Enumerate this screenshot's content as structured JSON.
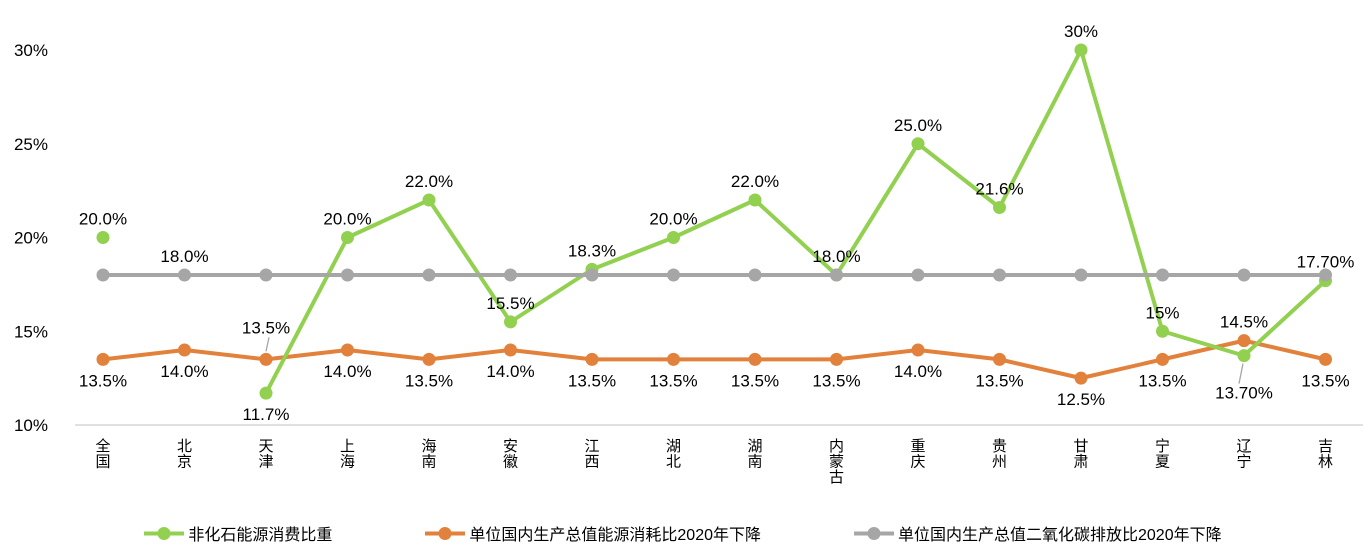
{
  "chart_data": {
    "type": "line",
    "title": "",
    "categories": [
      "全国",
      "北京",
      "天津",
      "上海",
      "海南",
      "安徽",
      "江西",
      "湖北",
      "湖南",
      "内蒙古",
      "重庆",
      "贵州",
      "甘肃",
      "宁夏",
      "辽宁",
      "吉林"
    ],
    "series": [
      {
        "name": "非化石能源消费比重",
        "color": "#92D050",
        "values": [
          20.0,
          null,
          11.7,
          20.0,
          22.0,
          15.5,
          18.3,
          20.0,
          22.0,
          18.0,
          25.0,
          21.6,
          30,
          15,
          13.7,
          17.7
        ],
        "labels": [
          "20.0%",
          "",
          "11.7%",
          "20.0%",
          "22.0%",
          "15.5%",
          "18.3%",
          "20.0%",
          "22.0%",
          "18.0%",
          "25.0%",
          "21.6%",
          "30%",
          "15%",
          "13.70%",
          "17.70%"
        ],
        "label_pos": [
          "above",
          "",
          "below",
          "above",
          "above",
          "above",
          "above",
          "above",
          "above",
          "above",
          "above",
          "above",
          "above",
          "above",
          "below-leader",
          "above"
        ]
      },
      {
        "name": "单位国内生产总值能源消耗比2020年下降",
        "color": "#E2813B",
        "values": [
          13.5,
          14.0,
          13.5,
          14.0,
          13.5,
          14.0,
          13.5,
          13.5,
          13.5,
          13.5,
          14.0,
          13.5,
          12.5,
          13.5,
          14.5,
          13.5
        ],
        "labels": [
          "13.5%",
          "14.0%",
          "13.5%",
          "14.0%",
          "13.5%",
          "14.0%",
          "13.5%",
          "13.5%",
          "13.5%",
          "13.5%",
          "14.0%",
          "13.5%",
          "12.5%",
          "13.5%",
          "14.5%",
          "13.5%"
        ],
        "label_pos": [
          "below",
          "below",
          "above-leader",
          "below",
          "below",
          "below",
          "below",
          "below",
          "below",
          "below",
          "below",
          "below",
          "below",
          "below",
          "above",
          "below"
        ]
      },
      {
        "name": "单位国内生产总值二氧化碳排放比2020年下降",
        "color": "#A6A6A6",
        "values": [
          18,
          18,
          18,
          18,
          18,
          18,
          18,
          18,
          18,
          18,
          18,
          18,
          18,
          18,
          18,
          18
        ],
        "labels": [
          "",
          "18.0%",
          "",
          "",
          "",
          "",
          "",
          "",
          "",
          "",
          "",
          "",
          "",
          "",
          "",
          ""
        ],
        "label_pos": [
          "",
          "above",
          "",
          "",
          "",
          "",
          "",
          "",
          "",
          "",
          "",
          "",
          "",
          "",
          "",
          ""
        ]
      }
    ],
    "y_axis": {
      "min": 10,
      "max": 30,
      "ticks": [
        "10%",
        "15%",
        "20%",
        "25%",
        "30%"
      ]
    },
    "grid": false,
    "x_axis_label_orientation": "vertical",
    "legend_position": "bottom"
  }
}
